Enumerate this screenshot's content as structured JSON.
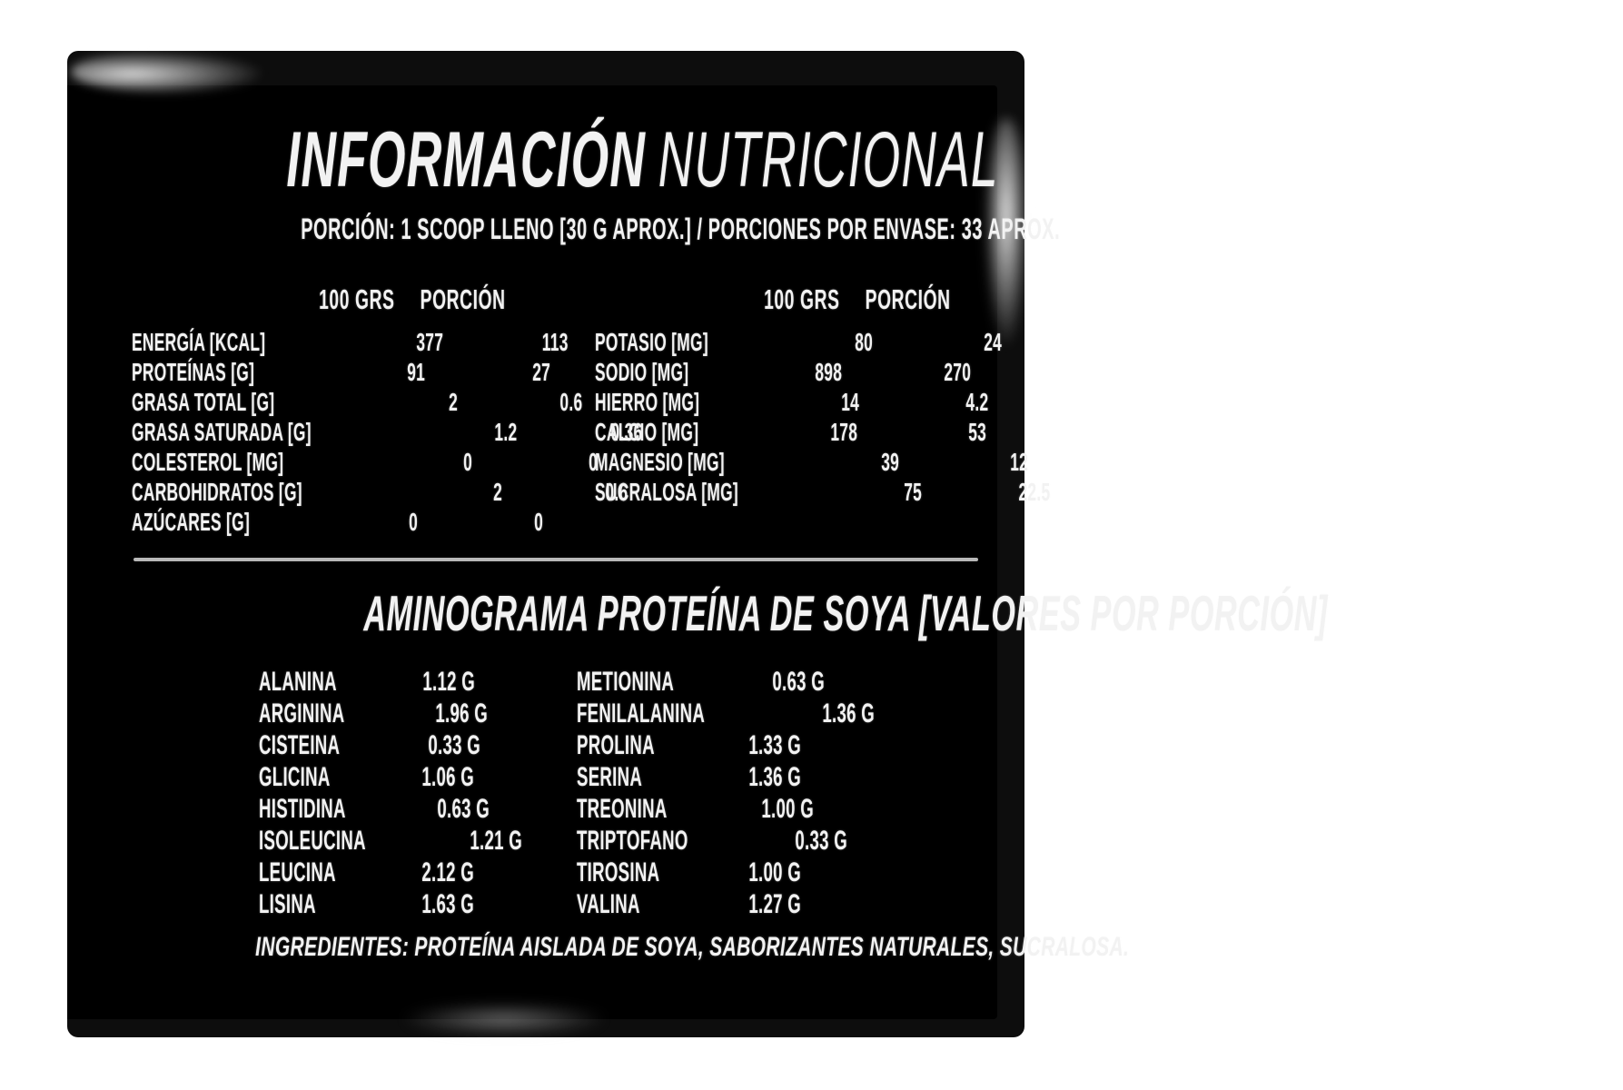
{
  "title": {
    "primary": "INFORMACIÓN",
    "secondary": "NUTRICIONAL"
  },
  "serving_line": "PORCIÓN: 1 SCOOP LLENO [30 G APROX.] / PORCIONES POR ENVASE: 33 APROX.",
  "nutrition": {
    "col_headers": [
      "100 GRS",
      "PORCIÓN"
    ],
    "left_rows": [
      {
        "label": "ENERGÍA [KCAL]",
        "per100": "377",
        "porcion": "113"
      },
      {
        "label": "PROTEÍNAS [G]",
        "per100": "91",
        "porcion": "27"
      },
      {
        "label": "GRASA TOTAL [G]",
        "per100": "2",
        "porcion": "0.6"
      },
      {
        "label": "GRASA SATURADA [G]",
        "per100": "1.2",
        "porcion": "0.36"
      },
      {
        "label": "COLESTEROL [MG]",
        "per100": "0",
        "porcion": "0"
      },
      {
        "label": "CARBOHIDRATOS [G]",
        "per100": "2",
        "porcion": "0.6"
      },
      {
        "label": "AZÚCARES [G]",
        "per100": "0",
        "porcion": "0"
      }
    ],
    "right_rows": [
      {
        "label": "POTASIO [MG]",
        "per100": "80",
        "porcion": "24"
      },
      {
        "label": "SODIO [MG]",
        "per100": "898",
        "porcion": "270"
      },
      {
        "label": "HIERRO [MG]",
        "per100": "14",
        "porcion": "4.2"
      },
      {
        "label": "CALCIO [MG]",
        "per100": "178",
        "porcion": "53"
      },
      {
        "label": "MAGNESIO [MG]",
        "per100": "39",
        "porcion": "12"
      },
      {
        "label": "SUCRALOSA [MG]",
        "per100": "75",
        "porcion": "22.5"
      }
    ]
  },
  "aminogram": {
    "heading": "AMINOGRAMA PROTEÍNA DE SOYA [VALORES POR PORCIÓN]",
    "left_rows": [
      {
        "name": "ALANINA",
        "value": "1.12 G"
      },
      {
        "name": "ARGININA",
        "value": "1.96 G"
      },
      {
        "name": "CISTEINA",
        "value": "0.33 G"
      },
      {
        "name": "GLICINA",
        "value": "1.06 G"
      },
      {
        "name": "HISTIDINA",
        "value": "0.63 G"
      },
      {
        "name": "ISOLEUCINA",
        "value": "1.21 G"
      },
      {
        "name": "LEUCINA",
        "value": "2.12 G"
      },
      {
        "name": "LISINA",
        "value": "1.63 G"
      }
    ],
    "right_rows": [
      {
        "name": "METIONINA",
        "value": "0.63 G"
      },
      {
        "name": "FENILALANINA",
        "value": "1.36 G"
      },
      {
        "name": "PROLINA",
        "value": "1.33 G"
      },
      {
        "name": "SERINA",
        "value": "1.36 G"
      },
      {
        "name": "TREONINA",
        "value": "1.00 G"
      },
      {
        "name": "TRIPTOFANO",
        "value": "0.33 G"
      },
      {
        "name": "TIROSINA",
        "value": "1.00 G"
      },
      {
        "name": "VALINA",
        "value": "1.27 G"
      }
    ]
  },
  "ingredients_line": "INGREDIENTES: PROTEÍNA AISLADA DE SOYA, SABORIZANTES NATURALES, SUCRALOSA.",
  "colors": {
    "page_bg": "#ffffff",
    "panel": "#000000",
    "panel_edge": "#0d0d0d",
    "text": "#f2f2f2",
    "divider": "#b8b8b8"
  }
}
